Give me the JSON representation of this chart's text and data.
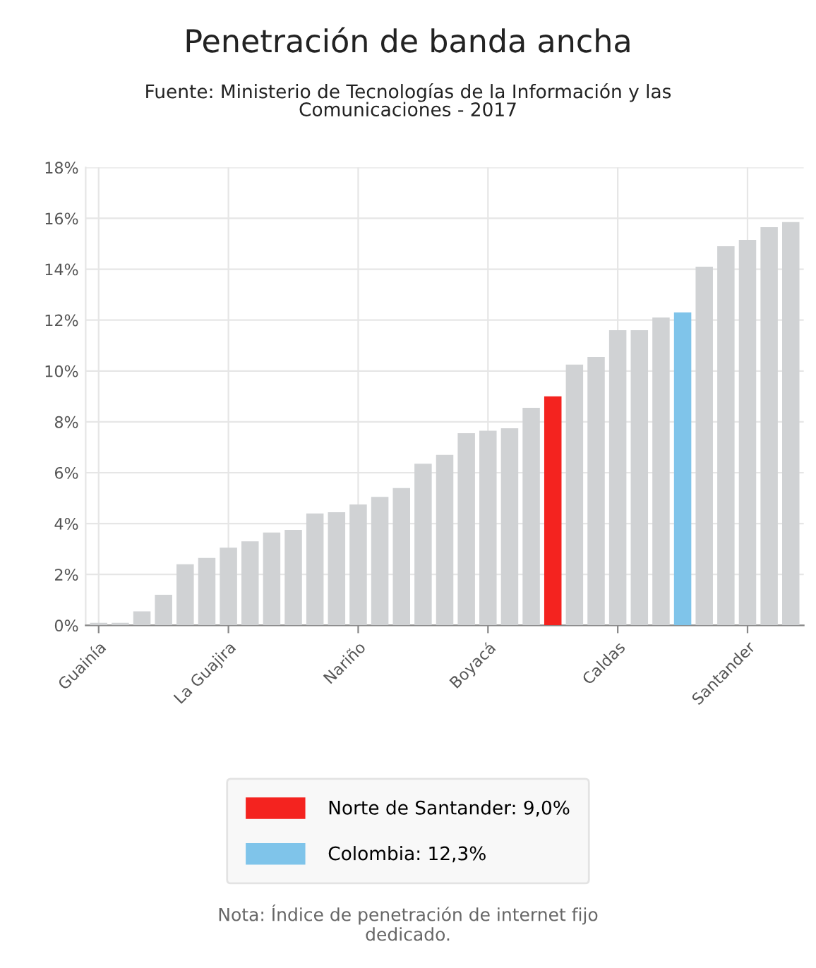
{
  "chart_data": {
    "type": "bar",
    "title": "Penetración de banda ancha",
    "subtitle": "Fuente: Ministerio de Tecnologías de la Información y las\nComunicaciones - 2017",
    "categories": [
      "Guainía",
      null,
      null,
      null,
      null,
      null,
      "La Guajira",
      null,
      null,
      null,
      null,
      null,
      "Nariño",
      null,
      null,
      null,
      null,
      null,
      "Boyacá",
      null,
      null,
      null,
      null,
      null,
      "Caldas",
      null,
      null,
      null,
      null,
      null,
      "Santander",
      null,
      null
    ],
    "series": [
      {
        "color": "#d0d2d4",
        "values": [
          0.1,
          0.1,
          0.55,
          1.2,
          2.4,
          2.65,
          3.05,
          3.3,
          3.65,
          3.75,
          4.4,
          4.45,
          4.75,
          5.05,
          5.4,
          6.35,
          6.7,
          7.55,
          7.65,
          7.75,
          8.55,
          null,
          10.25,
          10.55,
          11.6,
          11.6,
          12.1,
          null,
          14.1,
          14.9,
          15.15,
          15.65,
          15.85
        ]
      },
      {
        "name": "Norte de Santander: 9,0%",
        "color": "#f4231f",
        "values": [
          null,
          null,
          null,
          null,
          null,
          null,
          null,
          null,
          null,
          null,
          null,
          null,
          null,
          null,
          null,
          null,
          null,
          null,
          null,
          null,
          null,
          9.0,
          null,
          null,
          null,
          null,
          null,
          null,
          null,
          null,
          null,
          null,
          null
        ]
      },
      {
        "name": "Colombia: 12,3%",
        "color": "#7fc4ea",
        "values": [
          null,
          null,
          null,
          null,
          null,
          null,
          null,
          null,
          null,
          null,
          null,
          null,
          null,
          null,
          null,
          null,
          null,
          null,
          null,
          null,
          null,
          null,
          null,
          null,
          null,
          null,
          null,
          12.3,
          null,
          null,
          null,
          null,
          null
        ]
      }
    ],
    "ylim": [
      0,
      18
    ],
    "yticks": [
      {
        "value": 0,
        "label": "0%"
      },
      {
        "value": 2,
        "label": "2%"
      },
      {
        "value": 4,
        "label": "4%"
      },
      {
        "value": 6,
        "label": "6%"
      },
      {
        "value": 8,
        "label": "8%"
      },
      {
        "value": 10,
        "label": "10%"
      },
      {
        "value": 12,
        "label": "12%"
      },
      {
        "value": 14,
        "label": "14%"
      },
      {
        "value": 16,
        "label": "16%"
      },
      {
        "value": 18,
        "label": "18%"
      }
    ],
    "grid": true,
    "legend": "bottom",
    "annotations": [
      "Nota: Índice de penetración de internet fijo\ndedicado."
    ]
  }
}
